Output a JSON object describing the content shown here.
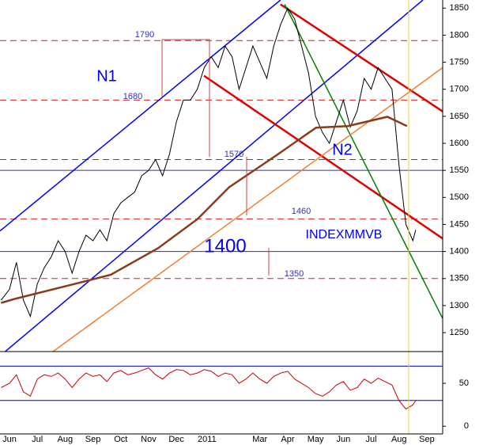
{
  "chart_data": [
    {
      "type": "line",
      "xlim": [
        0.16,
        16.07
      ],
      "ylim": [
        1215,
        1865
      ],
      "yticks": [
        1250,
        1300,
        1350,
        1400,
        1450,
        1500,
        1550,
        1600,
        1650,
        1700,
        1750,
        1800,
        1850
      ],
      "series": [
        {
          "color": "#000000",
          "x": [
            0.2,
            0.5,
            0.75,
            1,
            1.25,
            1.5,
            1.75,
            2,
            2.25,
            2.5,
            2.75,
            3,
            3.25,
            3.5,
            3.75,
            4,
            4.25,
            4.5,
            4.75,
            5,
            5.25,
            5.5,
            5.75,
            6,
            6.25,
            6.5,
            6.75,
            7,
            7.25,
            7.5,
            7.75,
            8,
            8.25,
            8.5,
            8.75,
            9,
            9.25,
            9.5,
            9.75,
            10,
            10.25,
            10.5,
            10.75,
            11,
            11.25,
            11.5,
            11.75,
            12,
            12.25,
            12.5,
            12.75,
            13,
            13.25,
            13.5,
            13.75,
            14,
            14.25,
            14.5,
            14.75,
            15,
            15.1
          ],
          "values": [
            1310,
            1330,
            1380,
            1310,
            1280,
            1340,
            1370,
            1390,
            1420,
            1400,
            1360,
            1400,
            1430,
            1420,
            1440,
            1420,
            1470,
            1490,
            1500,
            1510,
            1540,
            1550,
            1570,
            1540,
            1580,
            1640,
            1680,
            1680,
            1700,
            1740,
            1760,
            1740,
            1780,
            1760,
            1700,
            1740,
            1780,
            1750,
            1720,
            1780,
            1820,
            1850,
            1830,
            1780,
            1730,
            1650,
            1620,
            1600,
            1640,
            1680,
            1630,
            1660,
            1720,
            1700,
            1740,
            1720,
            1700,
            1560,
            1450,
            1420,
            1440
          ]
        },
        {
          "color": "#8b3a1a",
          "x": [
            0.2,
            0.73,
            3.0,
            4.14,
            5.84,
            7.26,
            8.4,
            10.1,
            11.52,
            12.66,
            14.08,
            14.79
          ],
          "values": [
            1305,
            1313,
            1342,
            1357,
            1406,
            1460,
            1519,
            1578,
            1629,
            1632,
            1649,
            1632
          ]
        }
      ],
      "levels": [
        1790,
        1680,
        1570,
        1460,
        1350
      ],
      "lines": [
        1550,
        1400
      ],
      "trendlines": [
        {
          "color": "#0000ff",
          "x": [
            0.16,
            10.24
          ],
          "values": [
            1438,
            1865
          ]
        },
        {
          "color": "#0000ff",
          "x": [
            0.3,
            15.36
          ],
          "values": [
            1213,
            1865
          ]
        },
        {
          "color": "#e00000",
          "x": [
            10.24,
            16.07
          ],
          "values": [
            1857,
            1659
          ]
        },
        {
          "color": "#e00000",
          "x": [
            7.49,
            16.07
          ],
          "values": [
            1725,
            1424
          ]
        },
        {
          "color": "#008000",
          "x": [
            10.39,
            16.07
          ],
          "values": [
            1857,
            1276
          ]
        },
        {
          "color": "#f08030",
          "x": [
            2.01,
            16.07
          ],
          "values": [
            1213,
            1740
          ]
        }
      ],
      "annotations": [
        "N1",
        "N2",
        "INDEXMMVB",
        "1400"
      ]
    },
    {
      "type": "line",
      "xlim": [
        0.16,
        16.07
      ],
      "ylim": [
        -9,
        87
      ],
      "yticks": [
        0,
        50
      ],
      "levels": [
        70,
        30
      ],
      "series": [
        {
          "color": "#cc0000",
          "x": [
            0.2,
            0.5,
            0.75,
            1,
            1.25,
            1.5,
            1.75,
            2,
            2.25,
            2.5,
            2.75,
            3,
            3.25,
            3.5,
            3.75,
            4,
            4.25,
            4.5,
            4.75,
            5,
            5.25,
            5.5,
            5.75,
            6,
            6.25,
            6.5,
            6.75,
            7,
            7.25,
            7.5,
            7.75,
            8,
            8.25,
            8.5,
            8.75,
            9,
            9.25,
            9.5,
            9.75,
            10,
            10.25,
            10.5,
            10.75,
            11,
            11.25,
            11.5,
            11.75,
            12,
            12.25,
            12.5,
            12.75,
            13,
            13.25,
            13.5,
            13.75,
            14,
            14.25,
            14.5,
            14.75,
            15,
            15.1
          ],
          "values": [
            45,
            50,
            60,
            40,
            35,
            55,
            60,
            58,
            62,
            55,
            45,
            55,
            62,
            58,
            60,
            52,
            62,
            65,
            60,
            62,
            65,
            68,
            60,
            55,
            62,
            66,
            65,
            60,
            62,
            66,
            64,
            58,
            62,
            60,
            50,
            55,
            62,
            55,
            50,
            58,
            62,
            64,
            55,
            50,
            45,
            38,
            35,
            40,
            48,
            52,
            42,
            45,
            55,
            50,
            56,
            52,
            48,
            30,
            20,
            25,
            30
          ]
        }
      ],
      "xticks": [
        {
          "value": 0.5,
          "label": "Jun"
        },
        {
          "value": 1.5,
          "label": "Jul"
        },
        {
          "value": 2.5,
          "label": "Aug"
        },
        {
          "value": 3.5,
          "label": "Sep"
        },
        {
          "value": 4.5,
          "label": "Oct"
        },
        {
          "value": 5.5,
          "label": "Nov"
        },
        {
          "value": 6.5,
          "label": "Dec"
        },
        {
          "value": 7.6,
          "label": "2011"
        },
        {
          "value": 9.5,
          "label": "Mar"
        },
        {
          "value": 10.5,
          "label": "Apr"
        },
        {
          "value": 11.5,
          "label": "May"
        },
        {
          "value": 12.5,
          "label": "Jun"
        },
        {
          "value": 13.5,
          "label": "Jul"
        },
        {
          "value": 14.5,
          "label": "Aug"
        },
        {
          "value": 15.5,
          "label": "Sep"
        }
      ]
    }
  ]
}
